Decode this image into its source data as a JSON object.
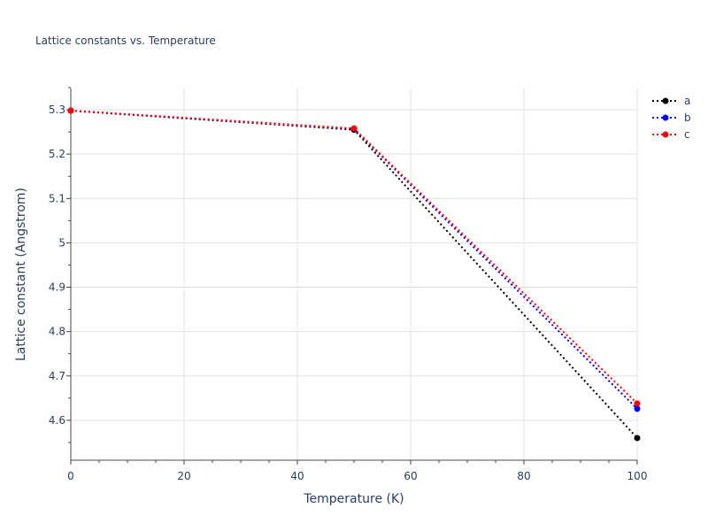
{
  "chart_data": {
    "type": "line",
    "title": "Lattice constants vs. Temperature",
    "xlabel": "Temperature (K)",
    "ylabel": "Lattice constant (Angstrom)",
    "xlim": [
      0,
      100
    ],
    "ylim": [
      4.51,
      5.348
    ],
    "xticks": [
      0,
      20,
      40,
      60,
      80,
      100
    ],
    "yticks": [
      4.6,
      4.7,
      4.8,
      4.9,
      5,
      5.1,
      5.2,
      5.3
    ],
    "ytick_labels": [
      "4.6",
      "4.7",
      "4.8",
      "4.9",
      "5",
      "5.1",
      "5.2",
      "5.3"
    ],
    "grid": true,
    "legend_position": "top-right",
    "x": [
      0,
      50,
      100
    ],
    "series": [
      {
        "name": "a",
        "color": "#000000",
        "values": [
          5.298,
          5.255,
          4.56
        ]
      },
      {
        "name": "b",
        "color": "#0000ff",
        "values": [
          5.298,
          5.257,
          4.626
        ]
      },
      {
        "name": "c",
        "color": "#ff0000",
        "values": [
          5.298,
          5.258,
          4.638
        ]
      }
    ]
  }
}
